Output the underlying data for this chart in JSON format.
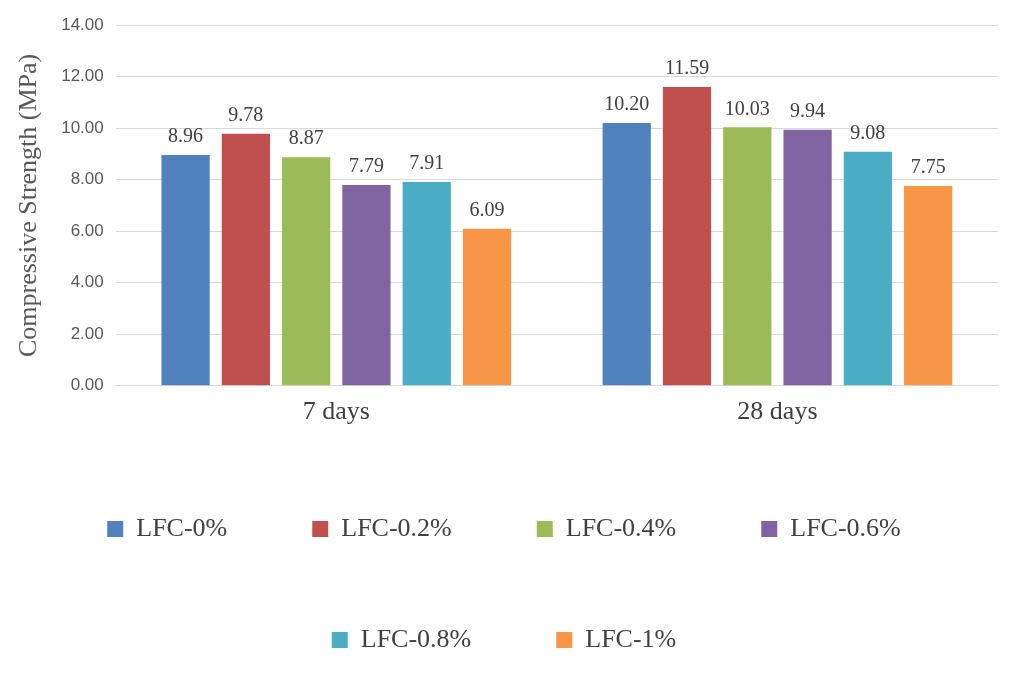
{
  "chart_data": {
    "type": "bar",
    "ylabel": "Compressive Strength (MPa)",
    "categories": [
      "7 days",
      "28 days"
    ],
    "series": [
      {
        "name": "LFC-0%",
        "color": "#4f81bd",
        "values": [
          8.96,
          10.2
        ],
        "value_labels": [
          "8.96",
          "10.20"
        ]
      },
      {
        "name": "LFC-0.2%",
        "color": "#c0504d",
        "values": [
          9.78,
          11.59
        ],
        "value_labels": [
          "9.78",
          "11.59"
        ]
      },
      {
        "name": "LFC-0.4%",
        "color": "#9bbb59",
        "values": [
          8.87,
          10.03
        ],
        "value_labels": [
          "8.87",
          "10.03"
        ]
      },
      {
        "name": "LFC-0.6%",
        "color": "#8064a2",
        "values": [
          7.79,
          9.94
        ],
        "value_labels": [
          "7.79",
          "9.94"
        ]
      },
      {
        "name": "LFC-0.8%",
        "color": "#4bacc6",
        "values": [
          7.91,
          9.08
        ],
        "value_labels": [
          "7.91",
          "9.08"
        ]
      },
      {
        "name": "LFC-1%",
        "color": "#f79646",
        "values": [
          6.09,
          7.75
        ],
        "value_labels": [
          "6.09",
          "7.75"
        ]
      }
    ],
    "ylim": [
      0,
      14
    ],
    "yticks": [
      {
        "value": 0,
        "label": "0.00"
      },
      {
        "value": 2,
        "label": "2.00"
      },
      {
        "value": 4,
        "label": "4.00"
      },
      {
        "value": 6,
        "label": "6.00"
      },
      {
        "value": 8,
        "label": "8.00"
      },
      {
        "value": 10,
        "label": "10.00"
      },
      {
        "value": 12,
        "label": "12.00"
      },
      {
        "value": 14,
        "label": "14.00"
      }
    ],
    "grid": "y",
    "legend": "bottom"
  }
}
